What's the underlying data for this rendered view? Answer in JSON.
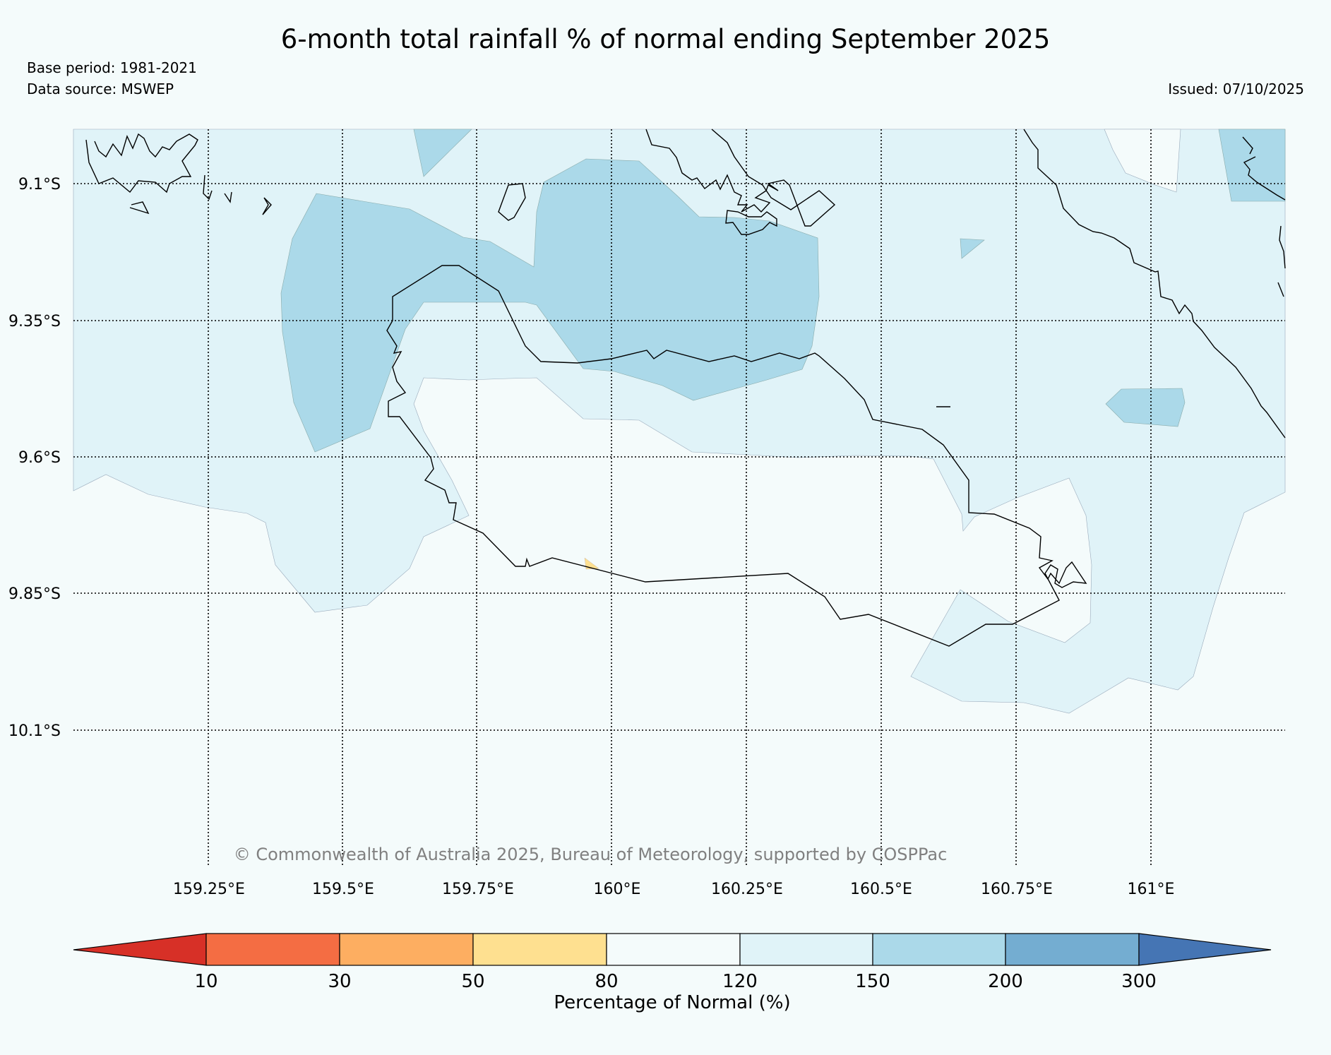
{
  "header": {
    "title": "6-month total rainfall % of normal ending September 2025",
    "base_period": "Base period: 1981-2021",
    "data_source": "Data source: MSWEP",
    "issued": "Issued: 07/10/2025"
  },
  "map": {
    "lat_labels": [
      "9.1°S",
      "9.35°S",
      "9.6°S",
      "9.85°S",
      "10.1°S"
    ],
    "lon_labels": [
      "159.25°E",
      "159.5°E",
      "159.75°E",
      "160°E",
      "160.25°E",
      "160.5°E",
      "160.75°E",
      "161°E"
    ],
    "copyright": "© Commonwealth of Australia 2025, Bureau of Meteorology, supported by COSPPac"
  },
  "legend": {
    "title": "Percentage of Normal (%)",
    "ticks": [
      "10",
      "30",
      "50",
      "80",
      "120",
      "150",
      "200",
      "300"
    ],
    "colors": {
      "below_10": "#d73027",
      "10_30": "#f46d43",
      "30_50": "#fdae61",
      "50_80": "#fee090",
      "80_120": "#f4fbfb",
      "120_150": "#e0f3f8",
      "150_200": "#abd9e9",
      "200_300": "#74add1",
      "above_300": "#4575b4"
    }
  }
}
